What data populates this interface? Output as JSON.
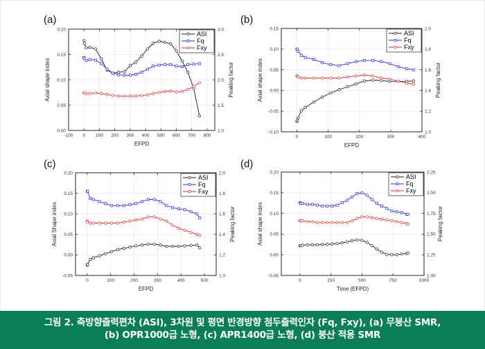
{
  "caption": {
    "line1": "그림 2. 축방향출력편차 (ASI), 3차원 및 평면 반경방향 첨두출력인자 (Fq, Fxy), (a) 무붕산 SMR,",
    "line2": "(b) OPR1000급 노형, (c) APR1400급 노형, (d) 붕산 적용 SMR"
  },
  "colors": {
    "ASI": "#1a1a1a",
    "Fq": "#2b2bdc",
    "Fxy": "#e02a2a",
    "caption_bg": "#0b7d57"
  },
  "chart_data": [
    {
      "id": "a",
      "panel_label": "(a)",
      "type": "line",
      "xlabel": "EFPD",
      "ylabel": "Axial shape index",
      "y2label": "Peaking factor",
      "xlim": [
        -100,
        850
      ],
      "ylim": [
        0.0,
        0.2
      ],
      "y2lim": [
        1.0,
        3.0
      ],
      "xticks": [
        "-100",
        "0",
        "100",
        "200",
        "300",
        "400",
        "500",
        "600",
        "700",
        "800"
      ],
      "yticks": [
        "0.00",
        "0.05",
        "0.10",
        "0.15",
        "0.20"
      ],
      "y2ticks": [
        "1.0",
        "1.5",
        "2.0",
        "2.5",
        "3.0"
      ],
      "legend": [
        "ASI",
        "Fq",
        "Fxy"
      ],
      "legend_position": "top-right",
      "grid": true,
      "series": [
        {
          "name": "ASI",
          "axis": "left",
          "marker": "circle",
          "x": [
            0,
            2,
            15,
            38,
            75,
            113,
            150,
            188,
            225,
            263,
            300,
            338,
            375,
            413,
            450,
            488,
            525,
            563,
            600,
            638,
            675,
            713,
            750
          ],
          "y": [
            0.177,
            0.172,
            0.163,
            0.164,
            0.161,
            0.141,
            0.119,
            0.113,
            0.115,
            0.116,
            0.128,
            0.135,
            0.147,
            0.161,
            0.172,
            0.176,
            0.174,
            0.171,
            0.157,
            0.137,
            0.115,
            0.083,
            0.029
          ]
        },
        {
          "name": "Fq",
          "axis": "right",
          "marker": "square",
          "x": [
            0,
            2,
            15,
            38,
            75,
            113,
            150,
            188,
            225,
            263,
            300,
            338,
            375,
            413,
            450,
            488,
            525,
            563,
            600,
            638,
            675,
            713,
            750
          ],
          "y": [
            2.44,
            2.42,
            2.38,
            2.4,
            2.39,
            2.32,
            2.21,
            2.13,
            2.1,
            2.09,
            2.09,
            2.11,
            2.15,
            2.21,
            2.27,
            2.29,
            2.3,
            2.3,
            2.27,
            2.26,
            2.3,
            2.31,
            2.32
          ]
        },
        {
          "name": "Fxy",
          "axis": "right",
          "marker": "circle",
          "x": [
            0,
            2,
            15,
            38,
            75,
            113,
            150,
            188,
            225,
            263,
            300,
            338,
            375,
            413,
            450,
            488,
            525,
            563,
            600,
            638,
            675,
            713,
            750
          ],
          "y": [
            1.74,
            1.74,
            1.73,
            1.73,
            1.74,
            1.73,
            1.71,
            1.69,
            1.68,
            1.68,
            1.68,
            1.68,
            1.69,
            1.7,
            1.73,
            1.75,
            1.77,
            1.78,
            1.76,
            1.77,
            1.81,
            1.87,
            1.94
          ]
        }
      ]
    },
    {
      "id": "b",
      "panel_label": "(b)",
      "type": "line",
      "xlabel": "EFPD",
      "ylabel": "Axial shape index",
      "y2label": "Peaking factor",
      "xlim": [
        -50,
        400
      ],
      "ylim": [
        -0.1,
        0.15
      ],
      "y2lim": [
        1.0,
        2.0
      ],
      "xticks": [
        "0",
        "100",
        "200",
        "300",
        "400"
      ],
      "yticks": [
        "-0.10",
        "-0.05",
        "0.00",
        "0.05",
        "0.10",
        "0.15"
      ],
      "y2ticks": [
        "1.0",
        "1.2",
        "1.4",
        "1.6",
        "1.8",
        "2.0"
      ],
      "legend": [
        "ASI",
        "Fq",
        "Fxy"
      ],
      "legend_position": "top-right",
      "grid": true,
      "series": [
        {
          "name": "ASI",
          "axis": "left",
          "marker": "circle",
          "x": [
            0,
            1,
            4,
            14,
            27,
            54,
            81,
            108,
            135,
            162,
            189,
            216,
            243,
            270,
            297,
            324,
            351,
            373
          ],
          "y": [
            -0.075,
            -0.072,
            -0.066,
            -0.049,
            -0.041,
            -0.028,
            -0.016,
            -0.006,
            0.002,
            0.009,
            0.016,
            0.023,
            0.025,
            0.024,
            0.022,
            0.022,
            0.022,
            0.023
          ]
        },
        {
          "name": "Fq",
          "axis": "right",
          "marker": "square",
          "x": [
            0,
            1,
            4,
            14,
            27,
            54,
            81,
            108,
            135,
            162,
            189,
            216,
            243,
            270,
            297,
            324,
            351,
            373
          ],
          "y": [
            1.8,
            1.8,
            1.78,
            1.74,
            1.72,
            1.7,
            1.67,
            1.65,
            1.64,
            1.66,
            1.68,
            1.69,
            1.69,
            1.68,
            1.66,
            1.63,
            1.61,
            1.6
          ]
        },
        {
          "name": "Fxy",
          "axis": "right",
          "marker": "circle",
          "x": [
            0,
            1,
            4,
            14,
            27,
            54,
            81,
            108,
            135,
            162,
            189,
            216,
            243,
            270,
            297,
            324,
            351,
            373
          ],
          "y": [
            1.54,
            1.54,
            1.53,
            1.52,
            1.52,
            1.52,
            1.52,
            1.52,
            1.52,
            1.53,
            1.54,
            1.55,
            1.54,
            1.52,
            1.51,
            1.49,
            1.47,
            1.46
          ]
        }
      ]
    },
    {
      "id": "c",
      "panel_label": "(c)",
      "type": "line",
      "xlabel": "EFPD",
      "ylabel": "Axial Shape index",
      "y2label": "Peaking factor",
      "xlim": [
        -50,
        550
      ],
      "ylim": [
        -0.05,
        0.2
      ],
      "y2lim": [
        1.0,
        2.0
      ],
      "xticks": [
        "0",
        "100",
        "200",
        "300",
        "400",
        "500"
      ],
      "yticks": [
        "-0.05",
        "0.00",
        "0.05",
        "0.10",
        "0.15",
        "0.20"
      ],
      "y2ticks": [
        "1.0",
        "1.2",
        "1.4",
        "1.6",
        "1.8",
        "2.0"
      ],
      "legend": [
        "ASI",
        "Fq",
        "Fxy"
      ],
      "legend_position": "top-right",
      "grid": true,
      "series": [
        {
          "name": "ASI",
          "axis": "left",
          "marker": "circle",
          "x": [
            0,
            1,
            13,
            26,
            52,
            78,
            104,
            130,
            156,
            182,
            208,
            234,
            260,
            286,
            312,
            338,
            364,
            390,
            416,
            442,
            468,
            480
          ],
          "y": [
            -0.025,
            -0.023,
            -0.011,
            -0.007,
            -0.002,
            0.003,
            0.008,
            0.013,
            0.016,
            0.019,
            0.022,
            0.024,
            0.026,
            0.026,
            0.024,
            0.021,
            0.021,
            0.021,
            0.022,
            0.023,
            0.024,
            0.017
          ]
        },
        {
          "name": "Fq",
          "axis": "right",
          "marker": "square",
          "x": [
            0,
            1,
            13,
            26,
            52,
            78,
            104,
            130,
            156,
            182,
            208,
            234,
            260,
            286,
            312,
            338,
            364,
            390,
            416,
            442,
            468,
            480
          ],
          "y": [
            1.82,
            1.82,
            1.75,
            1.74,
            1.72,
            1.7,
            1.68,
            1.68,
            1.68,
            1.69,
            1.7,
            1.72,
            1.74,
            1.74,
            1.72,
            1.68,
            1.66,
            1.65,
            1.64,
            1.62,
            1.6,
            1.56
          ]
        },
        {
          "name": "Fxy",
          "axis": "right",
          "marker": "circle",
          "x": [
            0,
            1,
            13,
            26,
            52,
            78,
            104,
            130,
            156,
            182,
            208,
            234,
            260,
            286,
            312,
            338,
            364,
            390,
            416,
            442,
            468,
            480
          ],
          "y": [
            1.53,
            1.52,
            1.51,
            1.51,
            1.51,
            1.51,
            1.51,
            1.51,
            1.52,
            1.53,
            1.54,
            1.55,
            1.57,
            1.57,
            1.55,
            1.53,
            1.49,
            1.46,
            1.44,
            1.42,
            1.4,
            1.39
          ]
        }
      ]
    },
    {
      "id": "d",
      "panel_label": "(d)",
      "type": "line",
      "xlabel": "Time (EFPD)",
      "ylabel": "Axial shape index",
      "y2label": "Peaking factor",
      "xlim": [
        -150,
        1000
      ],
      "ylim": [
        -0.05,
        0.2
      ],
      "y2lim": [
        1.0,
        2.25
      ],
      "xticks": [
        "0",
        "250",
        "500",
        "750",
        "1000"
      ],
      "yticks": [
        "-0.05",
        "0.00",
        "0.05",
        "0.10",
        "0.15",
        "0.20"
      ],
      "y2ticks": [
        "1.00",
        "1.25",
        "1.50",
        "1.75",
        "2.00",
        "2.25"
      ],
      "legend": [
        "ASI",
        "Fq",
        "Fxy"
      ],
      "legend_position": "top-right",
      "grid": true,
      "series": [
        {
          "name": "ASI",
          "axis": "left",
          "marker": "circle",
          "x": [
            0,
            5,
            20,
            60,
            100,
            140,
            180,
            220,
            260,
            300,
            340,
            380,
            420,
            460,
            500,
            540,
            580,
            620,
            660,
            700,
            740,
            780,
            820,
            860,
            870
          ],
          "y": [
            0.022,
            0.022,
            0.023,
            0.024,
            0.024,
            0.024,
            0.025,
            0.025,
            0.026,
            0.027,
            0.029,
            0.031,
            0.034,
            0.036,
            0.035,
            0.03,
            0.022,
            0.014,
            0.006,
            0.001,
            0.0,
            0.0,
            0.002,
            0.003,
            0.004
          ]
        },
        {
          "name": "Fq",
          "axis": "right",
          "marker": "square",
          "x": [
            0,
            5,
            20,
            60,
            100,
            140,
            180,
            220,
            260,
            300,
            340,
            380,
            420,
            460,
            500,
            540,
            580,
            620,
            660,
            700,
            740,
            780,
            820,
            860,
            870
          ],
          "y": [
            1.88,
            1.87,
            1.87,
            1.86,
            1.86,
            1.85,
            1.84,
            1.84,
            1.84,
            1.85,
            1.88,
            1.91,
            1.95,
            1.99,
            2.0,
            1.97,
            1.92,
            1.87,
            1.84,
            1.81,
            1.78,
            1.77,
            1.76,
            1.74,
            1.74
          ]
        },
        {
          "name": "Fxy",
          "axis": "right",
          "marker": "circle",
          "x": [
            0,
            5,
            20,
            60,
            100,
            140,
            180,
            220,
            260,
            300,
            340,
            380,
            420,
            460,
            500,
            540,
            580,
            620,
            660,
            700,
            740,
            780,
            820,
            860,
            870
          ],
          "y": [
            1.66,
            1.66,
            1.66,
            1.65,
            1.65,
            1.64,
            1.64,
            1.64,
            1.64,
            1.64,
            1.64,
            1.64,
            1.66,
            1.69,
            1.71,
            1.71,
            1.7,
            1.69,
            1.68,
            1.67,
            1.66,
            1.65,
            1.64,
            1.63,
            1.62
          ]
        }
      ]
    }
  ]
}
